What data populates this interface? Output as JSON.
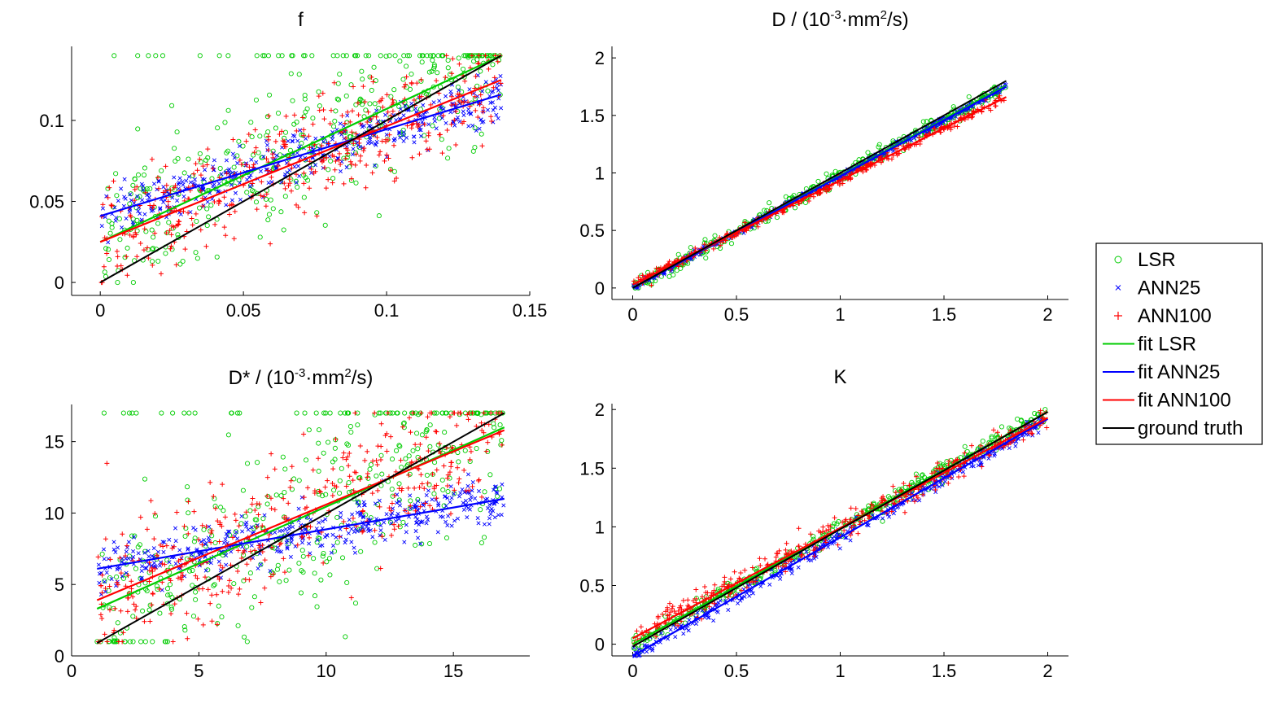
{
  "figure": {
    "legend": {
      "entries": [
        {
          "label": "LSR",
          "kind": "marker-circle",
          "color": "#00cc00"
        },
        {
          "label": "ANN25",
          "kind": "marker-x",
          "color": "#0000ff"
        },
        {
          "label": "ANN100",
          "kind": "marker-plus",
          "color": "#ff0000"
        },
        {
          "label": "fit LSR",
          "kind": "line",
          "color": "#00cc00"
        },
        {
          "label": "fit ANN25",
          "kind": "line",
          "color": "#0000ff"
        },
        {
          "label": "fit ANN100",
          "kind": "line",
          "color": "#ff0000"
        },
        {
          "label": "ground truth",
          "kind": "line",
          "color": "#000000"
        }
      ]
    },
    "colors": {
      "lsr": "#00cc00",
      "ann25": "#0000ff",
      "ann100": "#ff0000",
      "truth": "#000000"
    }
  },
  "chart_data": [
    {
      "id": "f",
      "type": "scatter",
      "title": {
        "main": "f"
      },
      "xlim": [
        -0.01,
        0.15
      ],
      "ylim": [
        -0.008,
        0.1457
      ],
      "xticks": [
        0,
        0.05,
        0.1,
        0.15
      ],
      "xtick_labels": [
        "0",
        "0.05",
        "0.1",
        "0.15"
      ],
      "yticks": [
        0,
        0.05,
        0.1
      ],
      "ytick_labels": [
        "0",
        "0.05",
        "0.1"
      ],
      "truth_range": [
        0,
        0.14
      ],
      "clip": [
        0,
        0.14
      ],
      "series": [
        {
          "name": "LSR",
          "marker": "circle",
          "fit": [
            [
              0,
              0.025
            ],
            [
              0.14,
              0.14
            ]
          ],
          "noise": 0.022
        },
        {
          "name": "ANN25",
          "marker": "x",
          "fit": [
            [
              0,
              0.041
            ],
            [
              0.14,
              0.116
            ]
          ],
          "noise": 0.008
        },
        {
          "name": "ANN100",
          "marker": "plus",
          "fit": [
            [
              0,
              0.025
            ],
            [
              0.14,
              0.125
            ]
          ],
          "noise": 0.016
        }
      ],
      "ground_truth": [
        [
          0,
          0
        ],
        [
          0.14,
          0.14
        ]
      ]
    },
    {
      "id": "D",
      "type": "scatter",
      "title": {
        "main": "D / (10",
        "exp1": "-3",
        "mid": "·mm",
        "exp2": "2",
        "tail": "/s)"
      },
      "xlim": [
        -0.1,
        2.1
      ],
      "ylim": [
        -0.1,
        2.1
      ],
      "xticks": [
        0,
        0.5,
        1,
        1.5,
        2
      ],
      "xtick_labels": [
        "0",
        "0.5",
        "1",
        "1.5",
        "2"
      ],
      "yticks": [
        0,
        0.5,
        1,
        1.5,
        2
      ],
      "ytick_labels": [
        "0",
        "0.5",
        "1",
        "1.5",
        "2"
      ],
      "truth_range": [
        0,
        1.8
      ],
      "clip": [
        0,
        1.8
      ],
      "series": [
        {
          "name": "LSR",
          "marker": "circle",
          "fit": [
            [
              0,
              0.0
            ],
            [
              1.8,
              1.76
            ]
          ],
          "noise": 0.035
        },
        {
          "name": "ANN25",
          "marker": "x",
          "fit": [
            [
              0,
              0.0
            ],
            [
              1.8,
              1.75
            ]
          ],
          "noise": 0.015
        },
        {
          "name": "ANN100",
          "marker": "plus",
          "fit": [
            [
              0,
              0.03
            ],
            [
              1.8,
              1.66
            ]
          ],
          "noise": 0.02
        }
      ],
      "ground_truth": [
        [
          0,
          0
        ],
        [
          1.8,
          1.8
        ]
      ]
    },
    {
      "id": "Dstar",
      "type": "scatter",
      "title": {
        "main": "D* / (10",
        "exp1": "-3",
        "mid": "·mm",
        "exp2": "2",
        "tail": "/s)"
      },
      "xlim": [
        0,
        18
      ],
      "ylim": [
        0,
        17.6
      ],
      "xticks": [
        0,
        5,
        10,
        15
      ],
      "xtick_labels": [
        "0",
        "5",
        "10",
        "15"
      ],
      "yticks": [
        0,
        5,
        10,
        15
      ],
      "ytick_labels": [
        "0",
        "5",
        "10",
        "15"
      ],
      "truth_range": [
        1,
        17
      ],
      "clip": [
        1,
        17
      ],
      "series": [
        {
          "name": "LSR",
          "marker": "circle",
          "fit": [
            [
              1,
              3.3
            ],
            [
              17,
              16.0
            ]
          ],
          "noise": 3.2
        },
        {
          "name": "ANN25",
          "marker": "x",
          "fit": [
            [
              1,
              6.1
            ],
            [
              17,
              11.0
            ]
          ],
          "noise": 0.9
        },
        {
          "name": "ANN100",
          "marker": "plus",
          "fit": [
            [
              1,
              3.9
            ],
            [
              17,
              15.8
            ]
          ],
          "noise": 2.5
        }
      ],
      "ground_truth": [
        [
          1,
          0.9
        ],
        [
          17,
          17.0
        ]
      ]
    },
    {
      "id": "K",
      "type": "scatter",
      "title": {
        "main": "K"
      },
      "xlim": [
        -0.1,
        2.1
      ],
      "ylim": [
        -0.1,
        2.05
      ],
      "xticks": [
        0,
        0.5,
        1,
        1.5,
        2
      ],
      "xtick_labels": [
        "0",
        "0.5",
        "1",
        "1.5",
        "2"
      ],
      "yticks": [
        0,
        0.5,
        1,
        1.5,
        2
      ],
      "ytick_labels": [
        "0",
        "0.5",
        "1",
        "1.5",
        "2"
      ],
      "truth_range": [
        0,
        2
      ],
      "clip": [
        -0.1,
        2
      ],
      "series": [
        {
          "name": "LSR",
          "marker": "circle",
          "fit": [
            [
              0,
              0.0
            ],
            [
              2,
              1.98
            ]
          ],
          "noise": 0.04
        },
        {
          "name": "ANN25",
          "marker": "x",
          "fit": [
            [
              0,
              -0.1
            ],
            [
              2,
              1.92
            ]
          ],
          "noise": 0.035
        },
        {
          "name": "ANN100",
          "marker": "plus",
          "fit": [
            [
              0,
              0.05
            ],
            [
              2,
              1.93
            ]
          ],
          "noise": 0.06
        }
      ],
      "ground_truth": [
        [
          0,
          -0.02
        ],
        [
          2,
          1.98
        ]
      ]
    }
  ]
}
